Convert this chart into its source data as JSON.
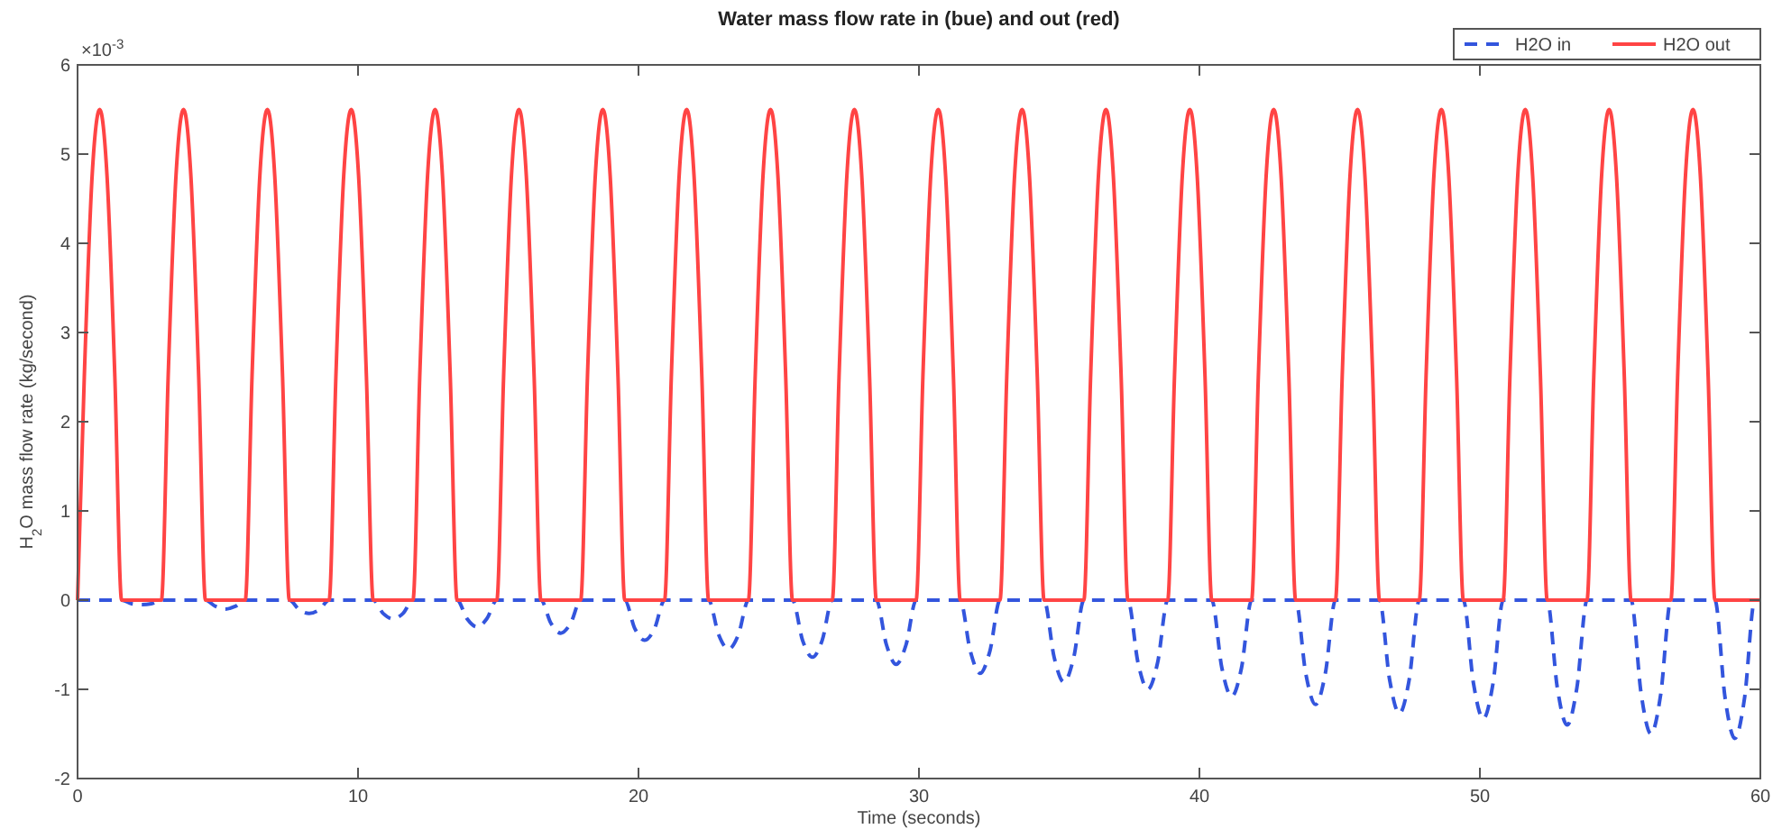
{
  "chart_data": {
    "type": "line",
    "title": "Water mass flow rate in (bue) and out (red)",
    "xlabel": "Time (seconds)",
    "ylabel": "H$_{2}$O mass flow rate (kg/second)",
    "annotations": [
      "×10$^{-3}$"
    ],
    "xlim": [
      0,
      60
    ],
    "xticks": [
      0,
      10,
      20,
      30,
      40,
      50,
      60
    ],
    "ylim": [
      -2,
      6
    ],
    "yticks": [
      -2,
      -1,
      0,
      1,
      2,
      3,
      4,
      5,
      6
    ],
    "grid": false,
    "legend": "top right",
    "series": [
      {
        "name": "H2O in",
        "color": "#3355dd",
        "line_style": "dashed",
        "x": [
          0,
          1.57,
          1.93,
          2.28,
          2.63,
          2.99,
          4.56,
          4.92,
          5.27,
          5.62,
          5.98,
          7.55,
          7.91,
          8.26,
          8.61,
          8.97,
          10.54,
          10.9,
          11.25,
          11.6,
          11.96,
          13.53,
          13.89,
          14.24,
          14.59,
          14.95,
          16.52,
          16.88,
          17.23,
          17.58,
          17.94,
          19.51,
          19.87,
          20.22,
          20.57,
          20.93,
          22.5,
          22.86,
          23.21,
          23.56,
          23.92,
          25.49,
          25.85,
          26.2,
          26.55,
          26.91,
          28.48,
          28.84,
          29.19,
          29.54,
          29.9,
          31.47,
          31.83,
          32.18,
          32.53,
          32.89,
          34.46,
          34.82,
          35.17,
          35.52,
          35.88,
          37.45,
          37.81,
          38.16,
          38.51,
          38.87,
          40.44,
          40.8,
          41.15,
          41.5,
          41.86,
          43.43,
          43.79,
          44.14,
          44.49,
          44.85,
          46.42,
          46.78,
          47.13,
          47.48,
          47.84,
          49.41,
          49.77,
          50.12,
          50.47,
          50.83,
          52.4,
          52.76,
          53.11,
          53.46,
          53.82,
          55.39,
          55.75,
          56.1,
          56.45,
          56.81,
          58.38,
          58.74,
          59.09,
          59.44,
          59.8,
          60
        ],
        "values": [
          0,
          0,
          -0.04,
          -0.05,
          -0.04,
          0,
          0,
          -0.07,
          -0.1,
          -0.07,
          0,
          0,
          -0.11,
          -0.15,
          -0.11,
          0,
          0,
          -0.15,
          -0.21,
          -0.15,
          0,
          0,
          -0.21,
          -0.3,
          -0.21,
          0,
          0,
          -0.26,
          -0.37,
          -0.26,
          0,
          0,
          -0.32,
          -0.45,
          -0.32,
          0,
          0,
          -0.39,
          -0.55,
          -0.39,
          0,
          0,
          -0.45,
          -0.64,
          -0.45,
          0,
          0,
          -0.5,
          -0.72,
          -0.5,
          0,
          0,
          -0.57,
          -0.82,
          -0.57,
          0,
          0,
          -0.64,
          -0.92,
          -0.64,
          0,
          0,
          -0.7,
          -1,
          -0.7,
          0,
          0,
          -0.76,
          -1.08,
          -0.76,
          0,
          0,
          -0.82,
          -1.17,
          -0.82,
          0,
          0,
          -0.89,
          -1.27,
          -0.89,
          0,
          0,
          -0.93,
          -1.33,
          -0.93,
          0,
          0,
          -0.98,
          -1.4,
          -0.98,
          0,
          0,
          -1.05,
          -1.5,
          -1.05,
          0,
          0,
          -1.09,
          -1.55,
          -1.09,
          0,
          0
        ]
      },
      {
        "name": "H2O out",
        "color": "#ff4444",
        "line_style": "solid",
        "x": [
          0,
          0.24,
          0.52,
          0.79,
          1.05,
          1.33,
          1.57,
          2.99,
          3.23,
          3.51,
          3.78,
          4.04,
          4.32,
          4.56,
          5.98,
          6.22,
          6.5,
          6.77,
          7.03,
          7.31,
          7.55,
          8.97,
          9.21,
          9.49,
          9.76,
          10.02,
          10.3,
          10.54,
          11.96,
          12.2,
          12.48,
          12.75,
          13.01,
          13.29,
          13.53,
          14.95,
          15.19,
          15.47,
          15.74,
          16,
          16.28,
          16.52,
          17.94,
          18.18,
          18.46,
          18.73,
          18.99,
          19.27,
          19.51,
          20.93,
          21.17,
          21.45,
          21.72,
          21.98,
          22.26,
          22.5,
          23.92,
          24.16,
          24.44,
          24.71,
          24.97,
          25.25,
          25.49,
          26.91,
          27.15,
          27.43,
          27.7,
          27.96,
          28.24,
          28.48,
          29.9,
          30.14,
          30.42,
          30.69,
          30.95,
          31.23,
          31.47,
          32.89,
          33.13,
          33.41,
          33.68,
          33.94,
          34.22,
          34.46,
          35.88,
          36.12,
          36.4,
          36.67,
          36.93,
          37.21,
          37.45,
          38.87,
          39.11,
          39.39,
          39.66,
          39.92,
          40.2,
          40.44,
          41.86,
          42.1,
          42.38,
          42.65,
          42.91,
          43.19,
          43.43,
          44.85,
          45.09,
          45.37,
          45.64,
          45.9,
          46.18,
          46.42,
          47.84,
          48.08,
          48.36,
          48.63,
          48.89,
          49.17,
          49.41,
          50.83,
          51.07,
          51.35,
          51.62,
          51.88,
          52.16,
          52.4,
          53.82,
          54.06,
          54.34,
          54.61,
          54.87,
          55.15,
          55.39,
          56.81,
          57.05,
          57.33,
          57.6,
          57.86,
          58.14,
          58.38,
          60
        ],
        "values": [
          0,
          2.5,
          4.76,
          5.5,
          4.76,
          2.5,
          0,
          0,
          2.5,
          4.76,
          5.5,
          4.76,
          2.5,
          0,
          0,
          2.5,
          4.76,
          5.5,
          4.76,
          2.5,
          0,
          0,
          2.5,
          4.76,
          5.5,
          4.76,
          2.5,
          0,
          0,
          2.5,
          4.76,
          5.5,
          4.76,
          2.5,
          0,
          0,
          2.5,
          4.76,
          5.5,
          4.76,
          2.5,
          0,
          0,
          2.5,
          4.76,
          5.5,
          4.76,
          2.5,
          0,
          0,
          2.5,
          4.76,
          5.5,
          4.76,
          2.5,
          0,
          0,
          2.5,
          4.76,
          5.5,
          4.76,
          2.5,
          0,
          0,
          2.5,
          4.76,
          5.5,
          4.76,
          2.5,
          0,
          0,
          2.5,
          4.76,
          5.5,
          4.76,
          2.5,
          0,
          0,
          2.5,
          4.76,
          5.5,
          4.76,
          2.5,
          0,
          0,
          2.5,
          4.76,
          5.5,
          4.76,
          2.5,
          0,
          0,
          2.5,
          4.76,
          5.5,
          4.76,
          2.5,
          0,
          0,
          2.5,
          4.76,
          5.5,
          4.76,
          2.5,
          0,
          0,
          2.5,
          4.76,
          5.5,
          4.76,
          2.5,
          0,
          0,
          2.5,
          4.76,
          5.5,
          4.76,
          2.5,
          0,
          0,
          2.5,
          4.76,
          5.5,
          4.76,
          2.5,
          0,
          0,
          2.5,
          4.76,
          5.5,
          4.76,
          2.5,
          0,
          0,
          2.5,
          4.76,
          5.5,
          4.76,
          2.5,
          0,
          0
        ]
      }
    ]
  }
}
